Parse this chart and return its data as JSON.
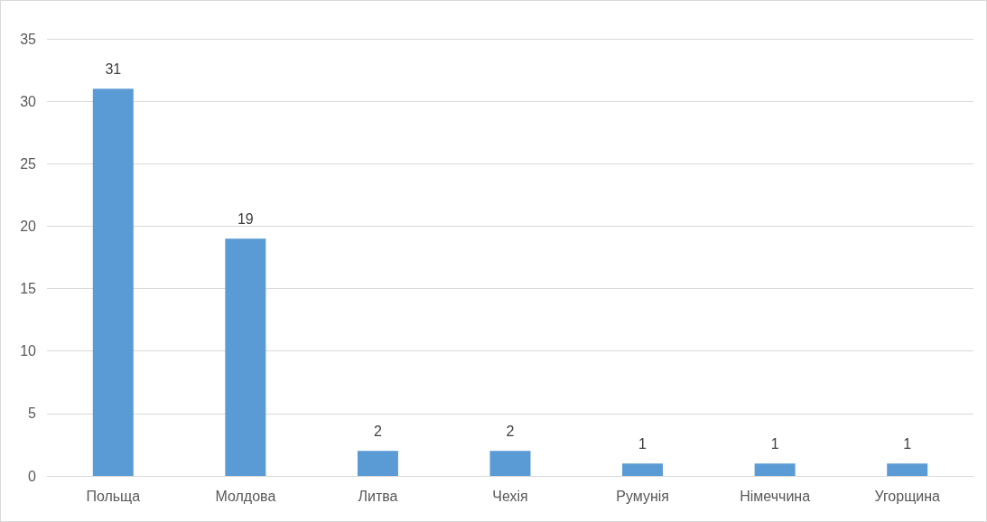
{
  "chart_data": {
    "type": "bar",
    "categories": [
      "Польща",
      "Молдова",
      "Литва",
      "Чехія",
      "Румунія",
      "Німеччина",
      "Угорщина"
    ],
    "values": [
      31,
      19,
      2,
      2,
      1,
      1,
      1
    ],
    "color": "#5b9bd5",
    "ylim": [
      0,
      35
    ],
    "yticks": [
      0,
      5,
      10,
      15,
      20,
      25,
      30,
      35
    ],
    "grid": "y",
    "data_labels": true
  }
}
